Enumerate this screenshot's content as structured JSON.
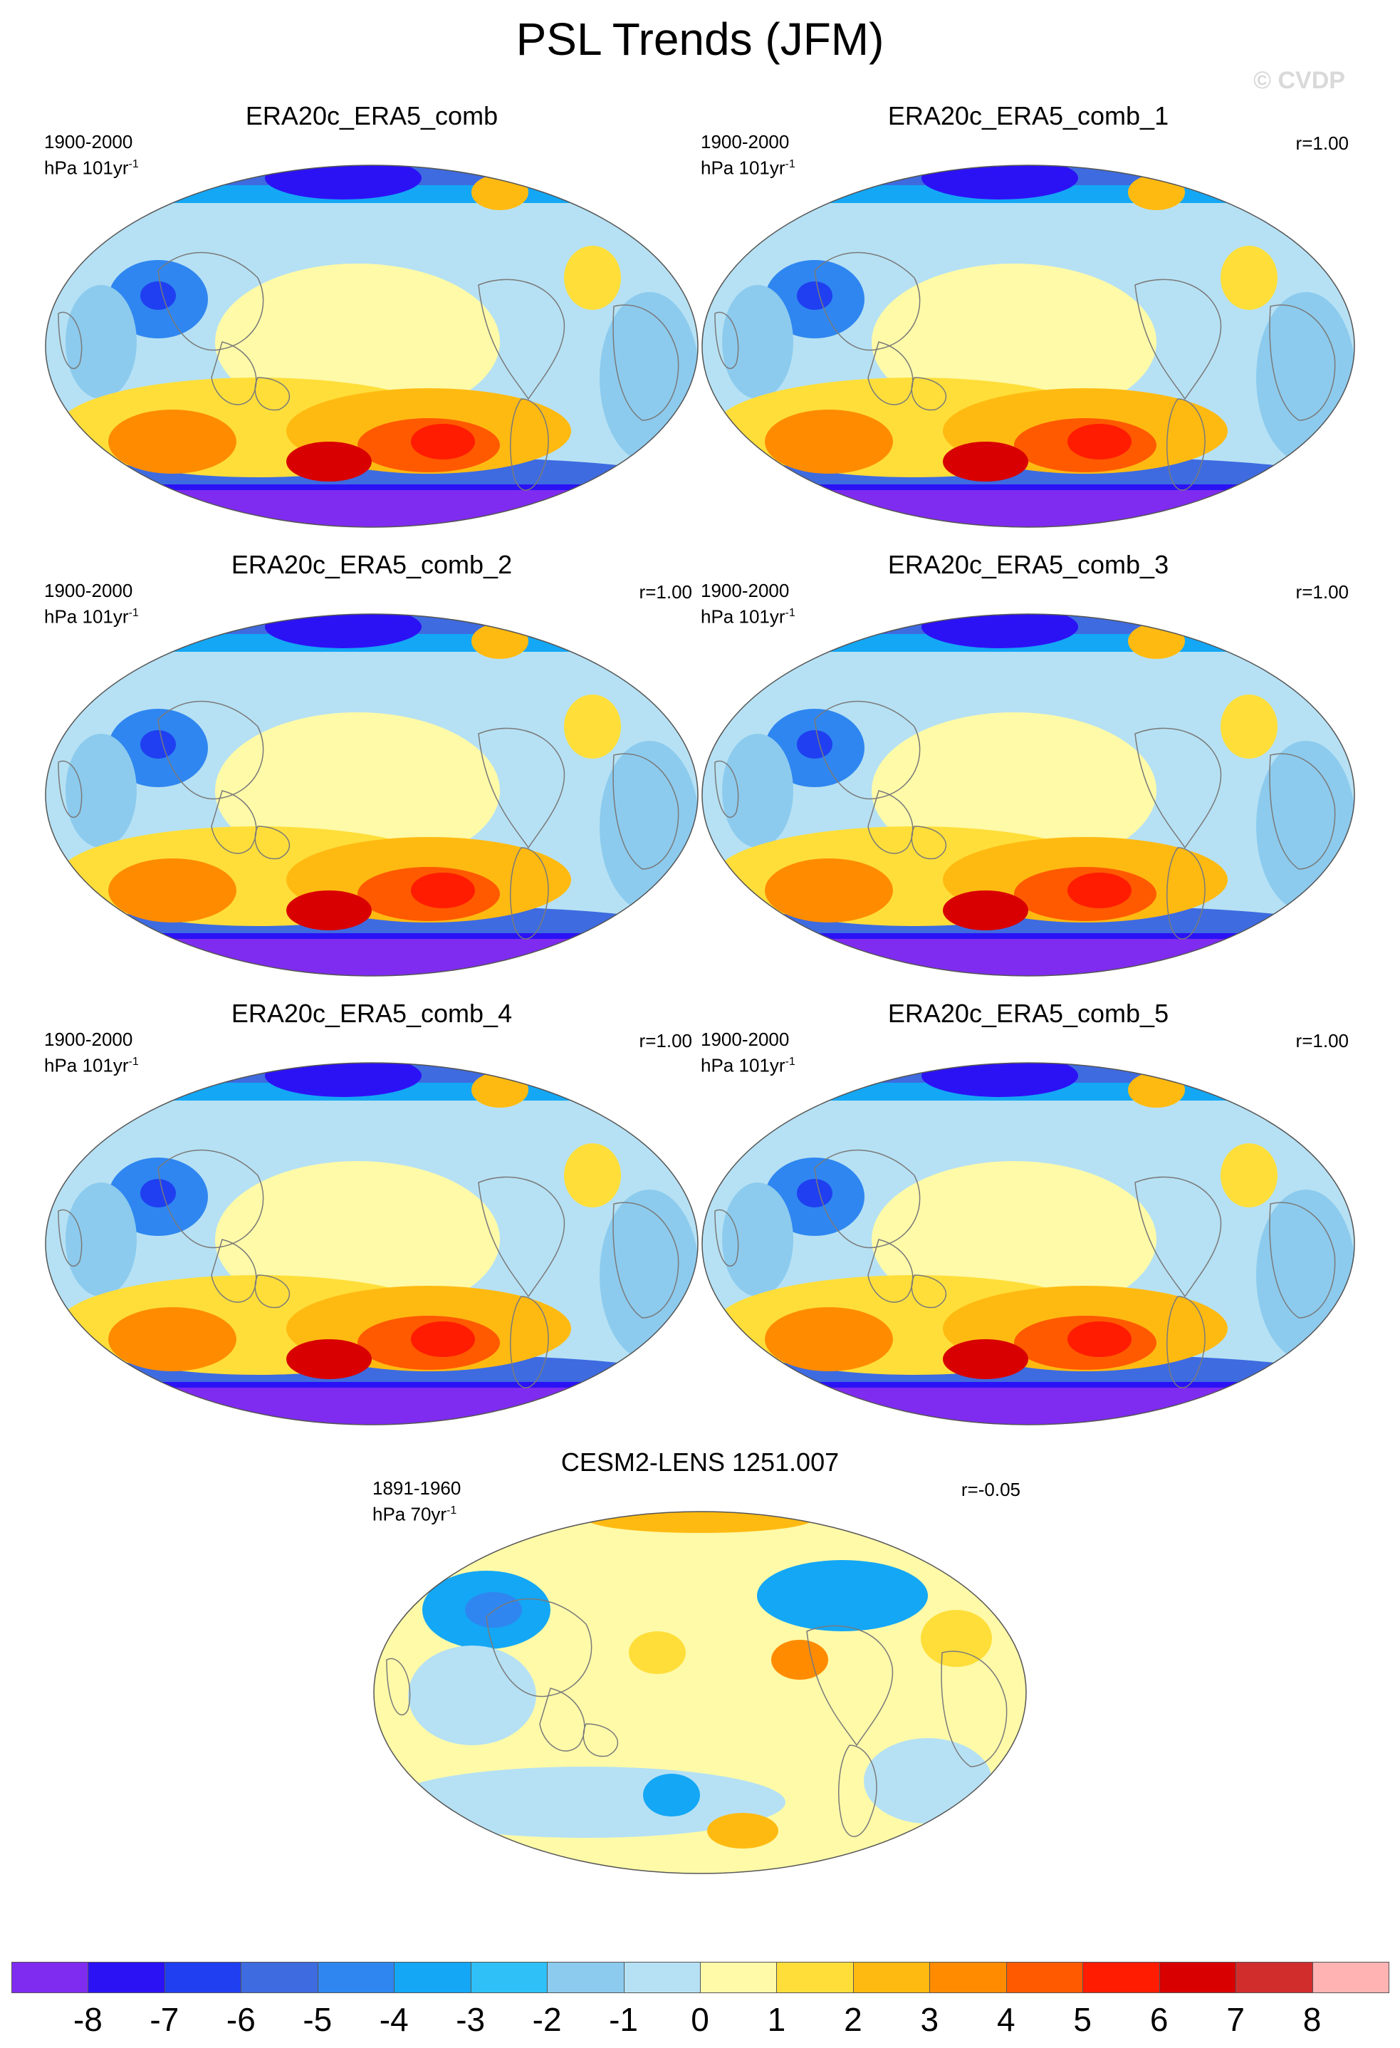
{
  "title": "PSL Trends (JFM)",
  "watermark": "© CVDP",
  "colors": {
    "land_outline": "#7a7a7a",
    "frame": "#555555"
  },
  "panels": [
    {
      "id": "p0",
      "title": "ERA20c_ERA5_comb",
      "period": "1900-2000",
      "units": "hPa 101yr",
      "units_sup": "-1",
      "corr": "",
      "pattern": "obs"
    },
    {
      "id": "p1",
      "title": "ERA20c_ERA5_comb_1",
      "period": "1900-2000",
      "units": "hPa 101yr",
      "units_sup": "-1",
      "corr": "r=1.00",
      "pattern": "obs"
    },
    {
      "id": "p2",
      "title": "ERA20c_ERA5_comb_2",
      "period": "1900-2000",
      "units": "hPa 101yr",
      "units_sup": "-1",
      "corr": "r=1.00",
      "pattern": "obs"
    },
    {
      "id": "p3",
      "title": "ERA20c_ERA5_comb_3",
      "period": "1900-2000",
      "units": "hPa 101yr",
      "units_sup": "-1",
      "corr": "r=1.00",
      "pattern": "obs"
    },
    {
      "id": "p4",
      "title": "ERA20c_ERA5_comb_4",
      "period": "1900-2000",
      "units": "hPa 101yr",
      "units_sup": "-1",
      "corr": "r=1.00",
      "pattern": "obs"
    },
    {
      "id": "p5",
      "title": "ERA20c_ERA5_comb_5",
      "period": "1900-2000",
      "units": "hPa 101yr",
      "units_sup": "-1",
      "corr": "r=1.00",
      "pattern": "obs"
    },
    {
      "id": "p6",
      "title": "CESM2-LENS 1251.007",
      "period": "1891-1960",
      "units": "hPa 70yr",
      "units_sup": "-1",
      "corr": "r=-0.05",
      "pattern": "model"
    }
  ],
  "colorbar": {
    "colors": [
      "#7f2bf0",
      "#2b12f5",
      "#1f3ff0",
      "#3e6be0",
      "#2f86f0",
      "#14a7f5",
      "#2ec0f7",
      "#8ccbee",
      "#b6e1f4",
      "#fffaa8",
      "#ffde3a",
      "#ffba12",
      "#ff8c00",
      "#ff5a00",
      "#ff1c00",
      "#d80000",
      "#d22d2d",
      "#ffb3b3"
    ],
    "labels": [
      "-8",
      "-7",
      "-6",
      "-5",
      "-4",
      "-3",
      "-2",
      "-1",
      "0",
      "1",
      "2",
      "3",
      "4",
      "5",
      "6",
      "7",
      "8"
    ]
  }
}
